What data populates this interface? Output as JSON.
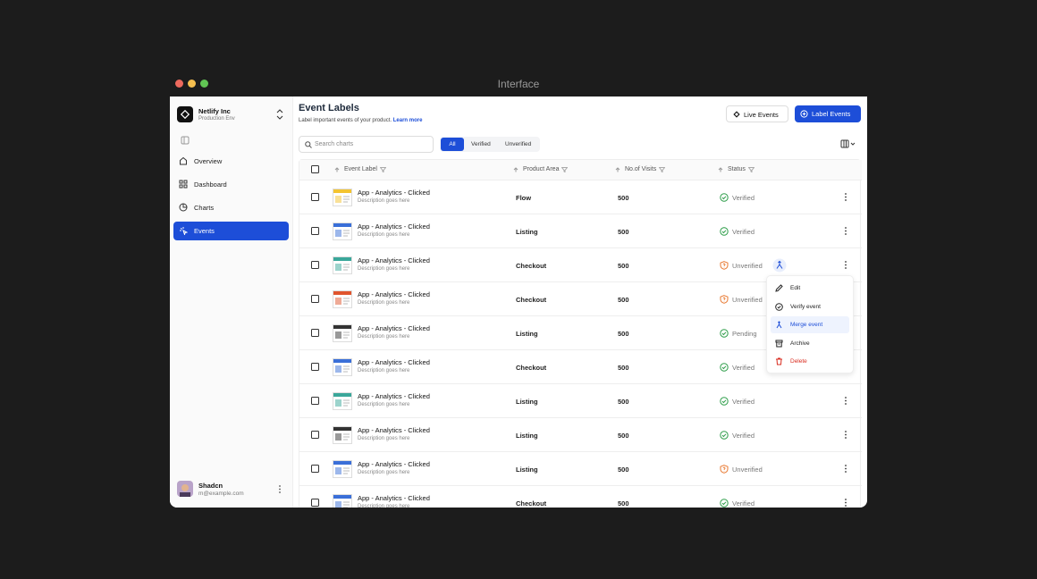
{
  "window": {
    "title": "Interface"
  },
  "sidebar": {
    "org": {
      "name": "Netlify Inc",
      "env": "Production Env"
    },
    "nav": [
      "Overview",
      "Dashboard",
      "Charts",
      "Events"
    ],
    "user": {
      "name": "Shadcn",
      "email": "m@example.com"
    }
  },
  "header": {
    "title": "Event Labels",
    "subtitle": "Label important events of your product.",
    "link": "Learn more",
    "buttons": [
      "Live Events",
      "Label Events"
    ]
  },
  "toolbar": {
    "search_placeholder": "Search charts",
    "tabs": [
      "All",
      "Verified",
      "Unverified"
    ]
  },
  "table": {
    "columns": [
      "Event Label",
      "Product Area",
      "No.of Visits",
      "Status"
    ],
    "rows": [
      {
        "name": "App - Analytics - Clicked",
        "description": "Description goes here",
        "area": "Flow",
        "visits": 500,
        "status": "Verified"
      },
      {
        "name": "App - Analytics - Clicked",
        "description": "Description goes here",
        "area": "Listing",
        "visits": 500,
        "status": "Verified"
      },
      {
        "name": "App - Analytics - Clicked",
        "description": "Description goes here",
        "area": "Checkout",
        "visits": 500,
        "status": "Unverified"
      },
      {
        "name": "App - Analytics - Clicked",
        "description": "Description goes here",
        "area": "Checkout",
        "visits": 500,
        "status": "Unverified"
      },
      {
        "name": "App - Analytics - Clicked",
        "description": "Description goes here",
        "area": "Listing",
        "visits": 500,
        "status": "Pending"
      },
      {
        "name": "App - Analytics - Clicked",
        "description": "Description goes here",
        "area": "Checkout",
        "visits": 500,
        "status": "Verified"
      },
      {
        "name": "App - Analytics - Clicked",
        "description": "Description goes here",
        "area": "Listing",
        "visits": 500,
        "status": "Verified"
      },
      {
        "name": "App - Analytics - Clicked",
        "description": "Description goes here",
        "area": "Listing",
        "visits": 500,
        "status": "Verified"
      },
      {
        "name": "App - Analytics - Clicked",
        "description": "Description goes here",
        "area": "Listing",
        "visits": 500,
        "status": "Unverified"
      },
      {
        "name": "App - Analytics - Clicked",
        "description": "Description goes here",
        "area": "Checkout",
        "visits": 500,
        "status": "Verified"
      }
    ]
  },
  "menu": {
    "items": [
      "Edit",
      "Verify event",
      "Merge event",
      "Archive",
      "Delete"
    ]
  }
}
